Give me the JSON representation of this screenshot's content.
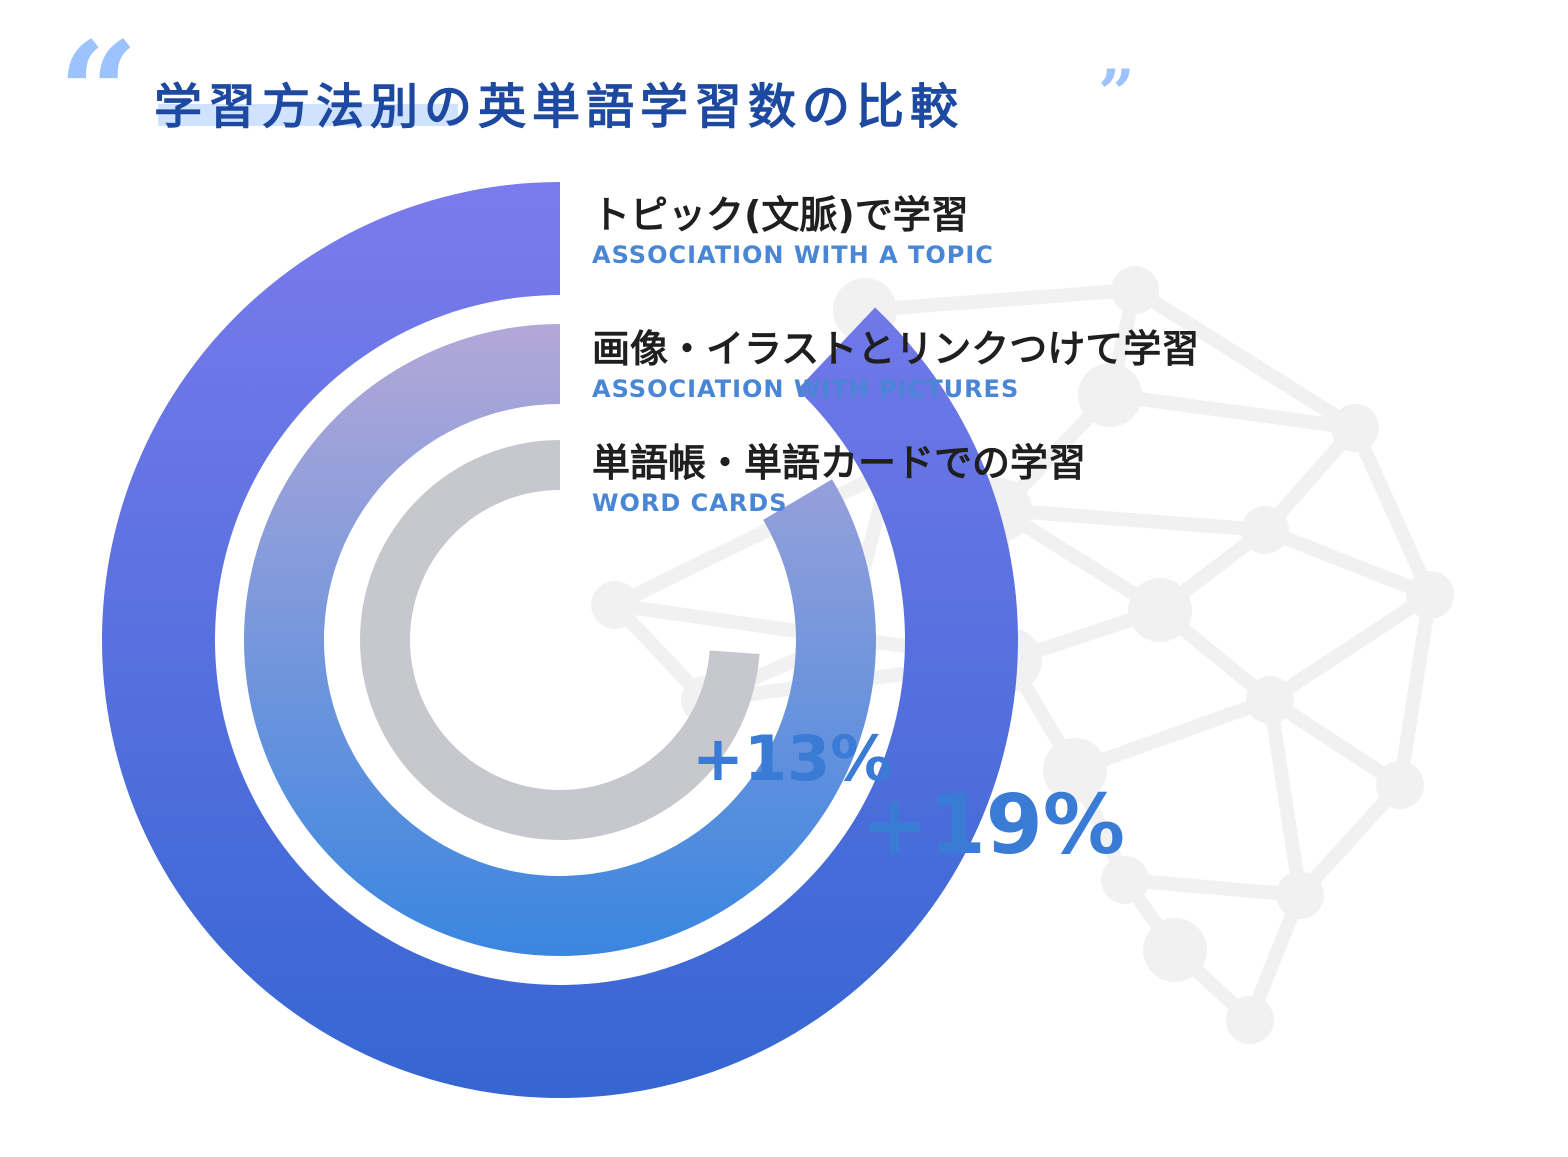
{
  "chart_data": {
    "type": "radial-bar",
    "title": "学習方法別の英単語学習数の比較",
    "series": [
      {
        "name": "トピック(文脈)で学習",
        "subtitle": "ASSOCIATION WITH A TOPIC",
        "relative_value": 119,
        "annotation": "+19%",
        "gradient": [
          "#7b7bec",
          "#3566d2"
        ]
      },
      {
        "name": "画像・イラストとリンクつけて学習",
        "subtitle": "ASSOCIATION WITH PICTURES",
        "relative_value": 113,
        "annotation": "+13%",
        "gradient": [
          "#b3a8d8",
          "#3a86e0"
        ]
      },
      {
        "name": "単語帳・単語カードでの学習",
        "subtitle": "WORD CARDS",
        "relative_value": 100,
        "annotation": "",
        "gradient": [
          "#c6c8cd",
          "#c6c8cd"
        ]
      }
    ]
  },
  "colors": {
    "title": "#1d4aa0",
    "accent": "#3a7bd5",
    "quote": "#9dc3ff",
    "network": "#f1f1f1"
  },
  "decor": {
    "quote_open": "“",
    "quote_close": "”"
  }
}
